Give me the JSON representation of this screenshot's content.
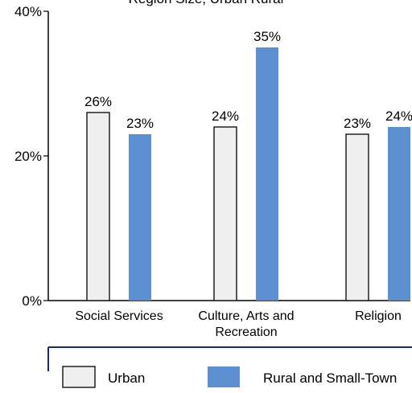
{
  "chart_data": {
    "type": "bar",
    "title": "Region Size, Urban Rural",
    "categories": [
      [
        "Social Services"
      ],
      [
        "Culture, Arts and",
        "Recreation"
      ],
      [
        "Religion"
      ]
    ],
    "series": [
      {
        "name": "Urban",
        "values": [
          26,
          24,
          23
        ],
        "labels": [
          "26%",
          "24%",
          "23%"
        ],
        "color": "#efefef",
        "stroke": "#222222"
      },
      {
        "name": "Rural and Small-Town",
        "values": [
          23,
          35,
          24
        ],
        "labels": [
          "23%",
          "35%",
          "24%"
        ],
        "color": "#5b8fcf",
        "stroke": "#5b8fcf"
      }
    ],
    "yticks": [
      {
        "value": 0,
        "label": "0%"
      },
      {
        "value": 20,
        "label": "20%"
      },
      {
        "value": 40,
        "label": "40%"
      }
    ],
    "ylim": [
      0,
      40
    ],
    "grid": false,
    "legend_position": "bottom",
    "legend_border_color": "#1f2a6b"
  }
}
